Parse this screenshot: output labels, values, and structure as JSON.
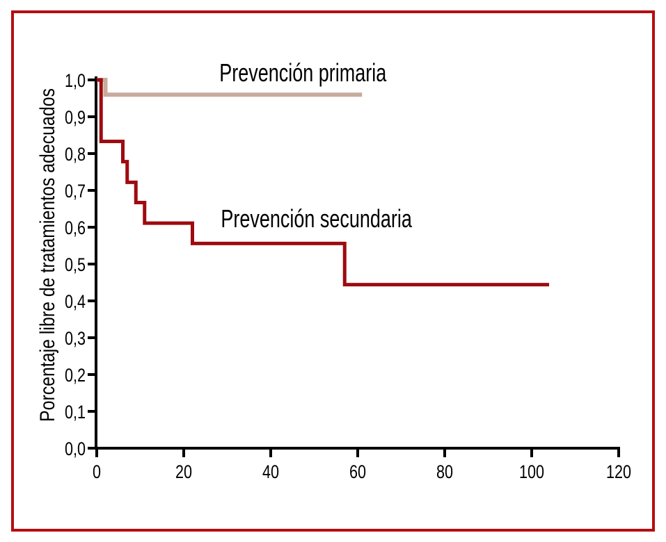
{
  "frame": {
    "border_color": "#b50d11",
    "background": "#ffffff"
  },
  "chart_data": {
    "type": "line",
    "variant": "kaplan_meier_step",
    "title": "",
    "xlabel": "",
    "ylabel": "Porcentaje libre de tratamientos adecuados",
    "xlim": [
      0,
      120
    ],
    "ylim": [
      0.0,
      1.0
    ],
    "grid": false,
    "legend": "inline_labels",
    "axis_color": "#000000",
    "x_ticks": [
      0,
      20,
      40,
      60,
      80,
      100,
      120
    ],
    "y_ticks": [
      {
        "value": 1.0,
        "label": "1,0"
      },
      {
        "value": 0.9,
        "label": "0,9"
      },
      {
        "value": 0.8,
        "label": "0,8"
      },
      {
        "value": 0.7,
        "label": "0,7"
      },
      {
        "value": 0.6,
        "label": "0,6"
      },
      {
        "value": 0.5,
        "label": "0,5"
      },
      {
        "value": 0.4,
        "label": "0,4"
      },
      {
        "value": 0.3,
        "label": "0,3"
      },
      {
        "value": 0.2,
        "label": "0,2"
      },
      {
        "value": 0.1,
        "label": "0,1"
      },
      {
        "value": 0.0,
        "label": "0,0"
      }
    ],
    "series": [
      {
        "name": "Prevención primaria",
        "color": "#c7ab9d",
        "stroke_width": 6,
        "points": [
          [
            0,
            1.0
          ],
          [
            2,
            1.0
          ],
          [
            2,
            0.96
          ],
          [
            61,
            0.96
          ]
        ]
      },
      {
        "name": "Prevención secundaria",
        "color": "#9e0b10",
        "stroke_width": 5,
        "points": [
          [
            0,
            1.0
          ],
          [
            1,
            1.0
          ],
          [
            1,
            0.833
          ],
          [
            6,
            0.833
          ],
          [
            6,
            0.778
          ],
          [
            7,
            0.778
          ],
          [
            7,
            0.722
          ],
          [
            9,
            0.722
          ],
          [
            9,
            0.667
          ],
          [
            11,
            0.667
          ],
          [
            11,
            0.611
          ],
          [
            22,
            0.611
          ],
          [
            22,
            0.556
          ],
          [
            57,
            0.556
          ],
          [
            57,
            0.444
          ],
          [
            104,
            0.444
          ]
        ]
      }
    ],
    "annotations": [
      {
        "text": "Prevención primaria",
        "x": 47.4,
        "y": 0.996
      },
      {
        "text": "Prevención secundaria",
        "x": 50.5,
        "y": 0.6
      }
    ]
  }
}
